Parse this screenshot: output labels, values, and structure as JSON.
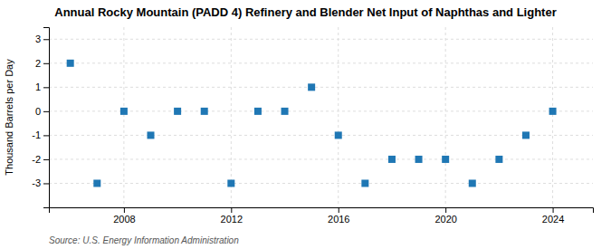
{
  "chart_data": {
    "type": "scatter",
    "title": "Annual Rocky Mountain (PADD 4) Refinery and Blender Net Input of Naphthas and Lighter",
    "y_label": "Thousand Barrels per Day",
    "annotations": [
      "Source: U.S. Energy Information Administration"
    ],
    "x": [
      2006,
      2007,
      2008,
      2009,
      2010,
      2011,
      2012,
      2013,
      2014,
      2015,
      2016,
      2017,
      2018,
      2019,
      2020,
      2021,
      2022,
      2023,
      2024
    ],
    "values": [
      2,
      -3,
      0,
      -1,
      0,
      0,
      -3,
      0,
      0,
      1,
      -1,
      -3,
      -2,
      -2,
      -2,
      -3,
      -2,
      -1,
      0
    ],
    "marker": "square",
    "xlim": [
      2005.2,
      2025.5
    ],
    "xticks": [
      2008,
      2012,
      2016,
      2020,
      2024
    ],
    "ylim": [
      -4,
      3.5
    ],
    "yticks": [
      -3,
      -2,
      -1,
      0,
      1,
      2,
      3
    ],
    "grid": true
  }
}
